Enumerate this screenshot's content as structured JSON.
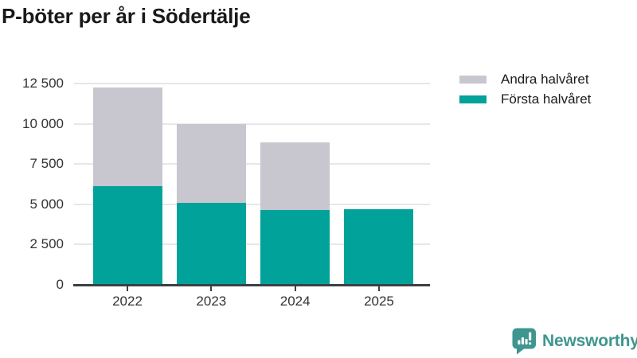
{
  "title": "P-böter per år i Södertälje",
  "legend": [
    {
      "label": "Andra halvåret",
      "color": "#c8c6ce"
    },
    {
      "label": "Första halvåret",
      "color": "#00a29a"
    }
  ],
  "chart_data": {
    "type": "bar",
    "stacked": true,
    "title": "P-böter per år i Södertälje",
    "categories": [
      "2022",
      "2023",
      "2024",
      "2025"
    ],
    "series": [
      {
        "name": "Första halvåret",
        "color": "#00a29a",
        "values": [
          6150,
          5100,
          4650,
          4700
        ]
      },
      {
        "name": "Andra halvåret",
        "color": "#c8c6ce",
        "values": [
          6100,
          4900,
          4200,
          0
        ]
      }
    ],
    "xlabel": "",
    "ylabel": "",
    "ylim": [
      0,
      12500
    ],
    "yticks": [
      0,
      2500,
      5000,
      7500,
      10000,
      12500
    ],
    "ytick_labels": [
      "0",
      "2 500",
      "5 000",
      "7 500",
      "10 000",
      "12 500"
    ],
    "grid": true,
    "legend_position": "top-right",
    "totals": [
      12250,
      10000,
      8850,
      4700
    ]
  },
  "footer": {
    "brand": "Newsworthy"
  },
  "colors": {
    "bar_first_half": "#00a29a",
    "bar_second_half": "#c8c6ce",
    "axis": "#3d4043",
    "gridline": "#e7e7e9",
    "tick_text": "#333333",
    "title_text": "#191919",
    "brand_teal": "#3f968f",
    "background": "#ffffff"
  }
}
